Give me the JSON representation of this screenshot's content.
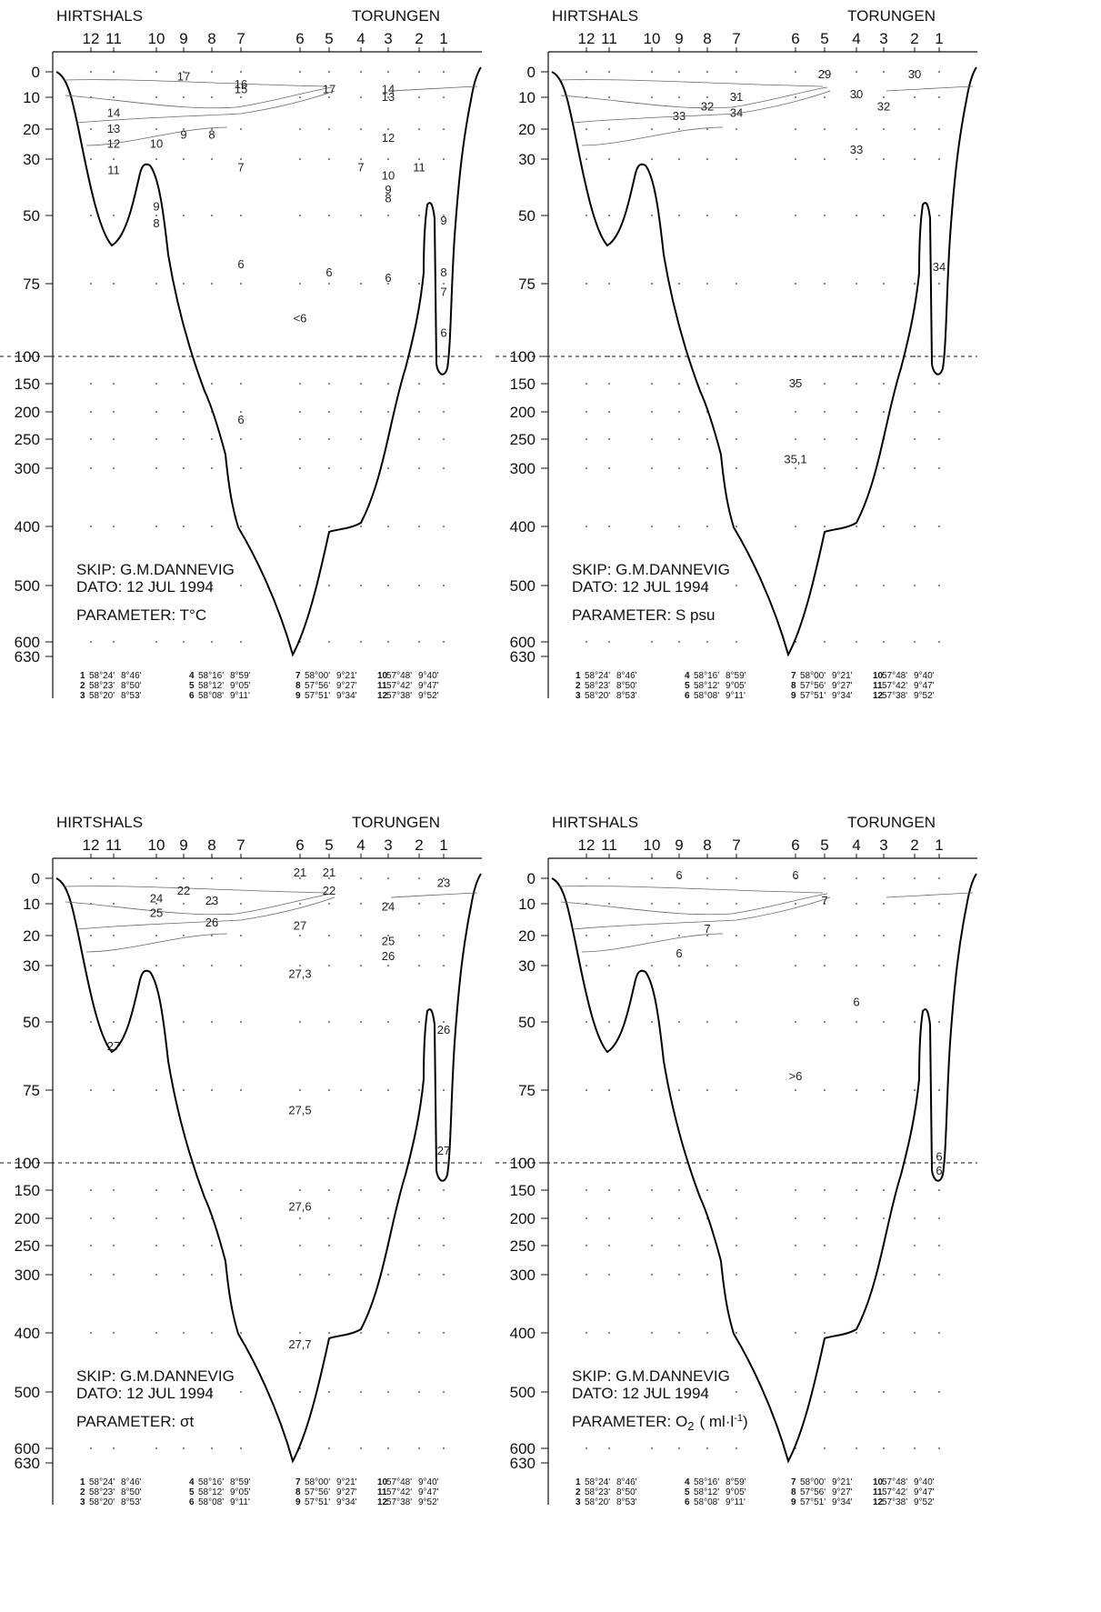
{
  "header": {
    "left_label": "HIRTSHALS",
    "right_label": "TORUNGEN"
  },
  "stations": [
    "12",
    "11",
    "10",
    "9",
    "8",
    "7",
    "6",
    "5",
    "4",
    "3",
    "2",
    "1"
  ],
  "depth_ticks": [
    "0",
    "10",
    "20",
    "30",
    "50",
    "75",
    "100",
    "150",
    "200",
    "250",
    "300",
    "400",
    "500",
    "600",
    "630"
  ],
  "ship_line": "SKIP: G.M.DANNEVIG",
  "date_line": "DATO: 12 JUL 1994",
  "positions": [
    [
      "1",
      "58°24'",
      "8°46'"
    ],
    [
      "2",
      "58°23'",
      "8°50'"
    ],
    [
      "3",
      "58°20'",
      "8°53'"
    ],
    [
      "4",
      "58°16'",
      "8°59'"
    ],
    [
      "5",
      "58°12'",
      "9°05'"
    ],
    [
      "6",
      "58°08'",
      "9°11'"
    ],
    [
      "7",
      "58°00'",
      "9°21'"
    ],
    [
      "8",
      "57°56'",
      "9°27'"
    ],
    [
      "9",
      "57°51'",
      "9°34'"
    ],
    [
      "10",
      "57°48'",
      "9°40'"
    ],
    [
      "11",
      "57°42'",
      "9°47'"
    ],
    [
      "12",
      "57°38'",
      "9°52'"
    ]
  ],
  "chart_data": [
    {
      "type": "contour-section",
      "parameter_label": "PARAMETER: T°C",
      "isoline_labels": [
        {
          "text": "17",
          "station": "9",
          "depth": 2
        },
        {
          "text": "16",
          "station": "7",
          "depth": 5
        },
        {
          "text": "15",
          "station": "7",
          "depth": 7
        },
        {
          "text": "17",
          "station": "5",
          "depth": 7
        },
        {
          "text": "14",
          "station": "3",
          "depth": 7
        },
        {
          "text": "13",
          "station": "3",
          "depth": 10
        },
        {
          "text": "14",
          "station": "11",
          "depth": 15
        },
        {
          "text": "13",
          "station": "11",
          "depth": 20
        },
        {
          "text": "12",
          "station": "11",
          "depth": 25
        },
        {
          "text": "10",
          "station": "10",
          "depth": 25
        },
        {
          "text": "9",
          "station": "9",
          "depth": 22
        },
        {
          "text": "8",
          "station": "8",
          "depth": 22
        },
        {
          "text": "12",
          "station": "3",
          "depth": 23
        },
        {
          "text": "11",
          "station": "11",
          "depth": 34
        },
        {
          "text": "7",
          "station": "7",
          "depth": 33
        },
        {
          "text": "7",
          "station": "4",
          "depth": 33
        },
        {
          "text": "11",
          "station": "2",
          "depth": 33
        },
        {
          "text": "10",
          "station": "3",
          "depth": 36
        },
        {
          "text": "9",
          "station": "3",
          "depth": 41
        },
        {
          "text": "8",
          "station": "3",
          "depth": 44
        },
        {
          "text": "9",
          "station": "10",
          "depth": 47
        },
        {
          "text": "8",
          "station": "10",
          "depth": 53
        },
        {
          "text": "9",
          "station": "1",
          "depth": 52
        },
        {
          "text": "6",
          "station": "7",
          "depth": 68
        },
        {
          "text": "6",
          "station": "5",
          "depth": 71
        },
        {
          "text": "8",
          "station": "1",
          "depth": 71
        },
        {
          "text": "6",
          "station": "3",
          "depth": 73
        },
        {
          "text": "7",
          "station": "1",
          "depth": 78
        },
        {
          "text": "<6",
          "station": "6",
          "depth": 87
        },
        {
          "text": "6",
          "station": "1",
          "depth": 92
        },
        {
          "text": "6",
          "station": "7",
          "depth": 215
        }
      ]
    },
    {
      "type": "contour-section",
      "parameter_label": "PARAMETER: S psu",
      "isoline_labels": [
        {
          "text": "29",
          "station": "5",
          "depth": 1
        },
        {
          "text": "30",
          "station": "2",
          "depth": 1
        },
        {
          "text": "31",
          "station": "7",
          "depth": 10
        },
        {
          "text": "30",
          "station": "4",
          "depth": 9
        },
        {
          "text": "32",
          "station": "8",
          "depth": 13
        },
        {
          "text": "33",
          "station": "9",
          "depth": 16
        },
        {
          "text": "34",
          "station": "7",
          "depth": 15
        },
        {
          "text": "32",
          "station": "3",
          "depth": 13
        },
        {
          "text": "33",
          "station": "4",
          "depth": 27
        },
        {
          "text": "34",
          "station": "1",
          "depth": 69
        },
        {
          "text": "35",
          "station": "6",
          "depth": 150
        },
        {
          "text": "35,1",
          "station": "6",
          "depth": 285
        }
      ]
    },
    {
      "type": "contour-section",
      "parameter_label": "PARAMETER: σt",
      "isoline_labels": [
        {
          "text": "21",
          "station": "6",
          "depth": -2
        },
        {
          "text": "21",
          "station": "5",
          "depth": -2
        },
        {
          "text": "23",
          "station": "1",
          "depth": 2
        },
        {
          "text": "22",
          "station": "9",
          "depth": 5
        },
        {
          "text": "22",
          "station": "5",
          "depth": 5
        },
        {
          "text": "24",
          "station": "10",
          "depth": 8
        },
        {
          "text": "23",
          "station": "8",
          "depth": 9
        },
        {
          "text": "24",
          "station": "3",
          "depth": 11
        },
        {
          "text": "25",
          "station": "10",
          "depth": 13
        },
        {
          "text": "26",
          "station": "8",
          "depth": 16
        },
        {
          "text": "27",
          "station": "6",
          "depth": 17
        },
        {
          "text": "25",
          "station": "3",
          "depth": 22
        },
        {
          "text": "26",
          "station": "3",
          "depth": 27
        },
        {
          "text": "27,3",
          "station": "6",
          "depth": 33
        },
        {
          "text": "27",
          "station": "11",
          "depth": 59
        },
        {
          "text": "26",
          "station": "1",
          "depth": 53
        },
        {
          "text": "27,5",
          "station": "6",
          "depth": 82
        },
        {
          "text": "27",
          "station": "1",
          "depth": 96
        },
        {
          "text": "27,6",
          "station": "6",
          "depth": 180
        },
        {
          "text": "27,7",
          "station": "6",
          "depth": 420
        }
      ]
    },
    {
      "type": "contour-section",
      "parameter_label": "PARAMETER: O",
      "parameter_subscript": "2",
      "parameter_unit": "( ml·l",
      "parameter_unit_exp": "-1",
      "parameter_unit_close": ")",
      "isoline_labels": [
        {
          "text": "6",
          "station": "9",
          "depth": -1
        },
        {
          "text": "6",
          "station": "6",
          "depth": -1
        },
        {
          "text": "7",
          "station": "5",
          "depth": 9
        },
        {
          "text": "7",
          "station": "8",
          "depth": 18
        },
        {
          "text": "6",
          "station": "9",
          "depth": 26
        },
        {
          "text": "6",
          "station": "4",
          "depth": 43
        },
        {
          "text": ">6",
          "station": "6",
          "depth": 70
        },
        {
          "text": "6",
          "station": "1",
          "depth": 98
        },
        {
          "text": "6",
          "station": "1",
          "depth": 115
        }
      ]
    }
  ]
}
